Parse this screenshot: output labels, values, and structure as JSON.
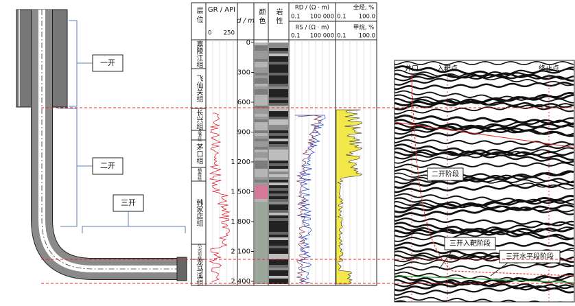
{
  "schematic": {
    "labels": [
      "一开",
      "二开",
      "三开"
    ]
  },
  "log": {
    "headers": {
      "formation": "层位",
      "gr": "GR / API",
      "gr_min": "0",
      "gr_max": "250",
      "depth": "d / m",
      "color": "颜色",
      "lithology": "岩性",
      "rd": "RD / (Ω · m)",
      "rd_min": "0.1",
      "rd_max": "100 000",
      "rs": "RS / (Ω · m)",
      "rs_min": "0.1",
      "rs_max": "100 000",
      "total_gas": "全烃, %",
      "tg_min": "0.1",
      "tg_max": "100.0",
      "methane": "甲烷, %",
      "me_min": "0.1",
      "me_max": "100.0"
    },
    "depth_ticks": [
      "0",
      "300",
      "600",
      "900",
      "1 200",
      "1 500",
      "1 800",
      "2 100",
      "2 400"
    ],
    "formations": [
      "嘉陵江组",
      "飞仙关组",
      "长兴组",
      "龙潭组",
      "茅口组",
      "栖霞组",
      "韩家店组",
      "小河坝组",
      "龙马溪组"
    ]
  },
  "seismic": {
    "top_labels": [
      "井口",
      "入靶点",
      "终止点"
    ],
    "stages": [
      "二开阶段",
      "三开入靶阶段",
      "三开水平段阶段"
    ]
  }
}
